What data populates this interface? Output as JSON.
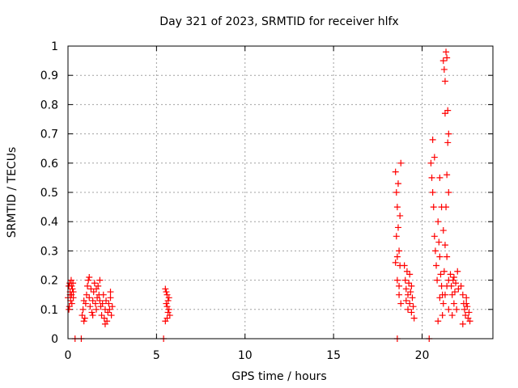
{
  "chart_data": {
    "type": "scatter",
    "title": "Day 321 of 2023, SRMTID for receiver hlfx",
    "xlabel": "GPS time / hours",
    "ylabel": "SRMTID / TECUs",
    "xlim": [
      0,
      24
    ],
    "ylim": [
      0,
      1
    ],
    "x_ticks": [
      "0",
      "5",
      "10",
      "15",
      "20"
    ],
    "x_tick_values": [
      0,
      5,
      10,
      15,
      20
    ],
    "y_ticks": [
      "0",
      "0.1",
      "0.2",
      "0.3",
      "0.4",
      "0.5",
      "0.6",
      "0.7",
      "0.8",
      "0.9",
      "1"
    ],
    "y_tick_values": [
      0,
      0.1,
      0.2,
      0.3,
      0.4,
      0.5,
      0.6,
      0.7,
      0.8,
      0.9,
      1.0
    ],
    "grid": true,
    "marker": "+",
    "color": "#ff0000",
    "series": [
      {
        "name": "SRMTID",
        "points": [
          [
            0.0,
            0.14
          ],
          [
            0.05,
            0.18
          ],
          [
            0.08,
            0.11
          ],
          [
            0.1,
            0.19
          ],
          [
            0.12,
            0.16
          ],
          [
            0.15,
            0.13
          ],
          [
            0.18,
            0.2
          ],
          [
            0.2,
            0.15
          ],
          [
            0.22,
            0.12
          ],
          [
            0.25,
            0.17
          ],
          [
            0.28,
            0.19
          ],
          [
            0.3,
            0.14
          ],
          [
            0.05,
            0.1
          ],
          [
            0.12,
            0.15
          ],
          [
            0.2,
            0.18
          ],
          [
            0.3,
            0.16
          ],
          [
            0.8,
            0.08
          ],
          [
            0.85,
            0.1
          ],
          [
            0.9,
            0.13
          ],
          [
            0.95,
            0.07
          ],
          [
            1.0,
            0.12
          ],
          [
            1.05,
            0.15
          ],
          [
            1.1,
            0.18
          ],
          [
            1.15,
            0.2
          ],
          [
            1.2,
            0.14
          ],
          [
            1.25,
            0.11
          ],
          [
            1.3,
            0.17
          ],
          [
            1.35,
            0.09
          ],
          [
            1.4,
            0.13
          ],
          [
            1.45,
            0.16
          ],
          [
            1.5,
            0.19
          ],
          [
            1.55,
            0.12
          ],
          [
            1.6,
            0.1
          ],
          [
            1.65,
            0.14
          ],
          [
            1.7,
            0.18
          ],
          [
            1.75,
            0.15
          ],
          [
            1.8,
            0.2
          ],
          [
            1.85,
            0.11
          ],
          [
            1.9,
            0.08
          ],
          [
            1.95,
            0.12
          ],
          [
            2.0,
            0.15
          ],
          [
            2.05,
            0.07
          ],
          [
            2.1,
            0.1
          ],
          [
            2.15,
            0.13
          ],
          [
            2.2,
            0.06
          ],
          [
            2.25,
            0.09
          ],
          [
            2.3,
            0.12
          ],
          [
            2.35,
            0.1
          ],
          [
            2.4,
            0.14
          ],
          [
            2.45,
            0.08
          ],
          [
            2.5,
            0.11
          ],
          [
            2.4,
            0.16
          ],
          [
            0.9,
            0.06
          ],
          [
            1.2,
            0.21
          ],
          [
            1.6,
            0.17
          ],
          [
            2.1,
            0.05
          ],
          [
            1.4,
            0.08
          ],
          [
            1.8,
            0.13
          ],
          [
            5.5,
            0.17
          ],
          [
            5.55,
            0.12
          ],
          [
            5.6,
            0.15
          ],
          [
            5.65,
            0.09
          ],
          [
            5.7,
            0.14
          ],
          [
            5.5,
            0.06
          ],
          [
            5.6,
            0.11
          ],
          [
            5.75,
            0.08
          ],
          [
            5.55,
            0.16
          ],
          [
            5.7,
            0.1
          ],
          [
            5.65,
            0.13
          ],
          [
            5.6,
            0.07
          ],
          [
            18.5,
            0.57
          ],
          [
            18.55,
            0.5
          ],
          [
            18.6,
            0.45
          ],
          [
            18.65,
            0.38
          ],
          [
            18.7,
            0.3
          ],
          [
            18.75,
            0.25
          ],
          [
            18.8,
            0.6
          ],
          [
            18.5,
            0.26
          ],
          [
            18.6,
            0.2
          ],
          [
            18.7,
            0.15
          ],
          [
            18.8,
            0.12
          ],
          [
            18.65,
            0.53
          ],
          [
            18.55,
            0.35
          ],
          [
            18.75,
            0.42
          ],
          [
            18.6,
            0.28
          ],
          [
            18.7,
            0.18
          ],
          [
            19.0,
            0.25
          ],
          [
            19.05,
            0.2
          ],
          [
            19.1,
            0.17
          ],
          [
            19.15,
            0.23
          ],
          [
            19.2,
            0.15
          ],
          [
            19.25,
            0.19
          ],
          [
            19.3,
            0.12
          ],
          [
            19.35,
            0.16
          ],
          [
            19.4,
            0.09
          ],
          [
            19.45,
            0.14
          ],
          [
            19.5,
            0.11
          ],
          [
            19.55,
            0.07
          ],
          [
            19.2,
            0.1
          ],
          [
            19.3,
            0.22
          ],
          [
            19.4,
            0.18
          ],
          [
            19.1,
            0.13
          ],
          [
            20.5,
            0.6
          ],
          [
            20.55,
            0.55
          ],
          [
            20.6,
            0.5
          ],
          [
            20.65,
            0.45
          ],
          [
            20.7,
            0.35
          ],
          [
            20.75,
            0.3
          ],
          [
            20.8,
            0.25
          ],
          [
            20.85,
            0.2
          ],
          [
            20.6,
            0.68
          ],
          [
            20.7,
            0.62
          ],
          [
            20.9,
            0.4
          ],
          [
            20.95,
            0.33
          ],
          [
            21.0,
            0.28
          ],
          [
            21.05,
            0.22
          ],
          [
            21.1,
            0.18
          ],
          [
            21.15,
            0.15
          ],
          [
            21.0,
            0.55
          ],
          [
            21.1,
            0.45
          ],
          [
            21.2,
            0.95
          ],
          [
            21.25,
            0.92
          ],
          [
            21.3,
            0.88
          ],
          [
            21.35,
            0.98
          ],
          [
            21.4,
            0.96
          ],
          [
            21.3,
            0.77
          ],
          [
            21.45,
            0.78
          ],
          [
            21.5,
            0.7
          ],
          [
            21.45,
            0.67
          ],
          [
            21.4,
            0.56
          ],
          [
            21.5,
            0.5
          ],
          [
            21.35,
            0.45
          ],
          [
            21.2,
            0.37
          ],
          [
            21.3,
            0.32
          ],
          [
            21.4,
            0.28
          ],
          [
            21.25,
            0.23
          ],
          [
            21.5,
            0.2
          ],
          [
            21.2,
            0.12
          ],
          [
            21.3,
            0.15
          ],
          [
            21.4,
            0.18
          ],
          [
            21.5,
            0.1
          ],
          [
            21.15,
            0.08
          ],
          [
            20.9,
            0.06
          ],
          [
            21.0,
            0.14
          ],
          [
            21.6,
            0.22
          ],
          [
            21.65,
            0.18
          ],
          [
            21.7,
            0.15
          ],
          [
            21.75,
            0.2
          ],
          [
            21.8,
            0.12
          ],
          [
            21.85,
            0.16
          ],
          [
            21.9,
            0.19
          ],
          [
            21.95,
            0.1
          ],
          [
            22.0,
            0.23
          ],
          [
            22.05,
            0.17
          ],
          [
            21.7,
            0.08
          ],
          [
            21.8,
            0.21
          ],
          [
            22.2,
            0.18
          ],
          [
            22.3,
            0.15
          ],
          [
            22.35,
            0.12
          ],
          [
            22.4,
            0.1
          ],
          [
            22.45,
            0.08
          ],
          [
            22.5,
            0.14
          ],
          [
            22.55,
            0.11
          ],
          [
            22.6,
            0.07
          ],
          [
            22.65,
            0.09
          ],
          [
            22.7,
            0.06
          ],
          [
            22.3,
            0.05
          ],
          [
            22.5,
            0.12
          ],
          [
            0.4,
            0.0
          ],
          [
            0.75,
            0.0
          ],
          [
            5.4,
            0.0
          ],
          [
            18.6,
            0.0
          ],
          [
            20.4,
            0.0
          ]
        ]
      }
    ]
  }
}
